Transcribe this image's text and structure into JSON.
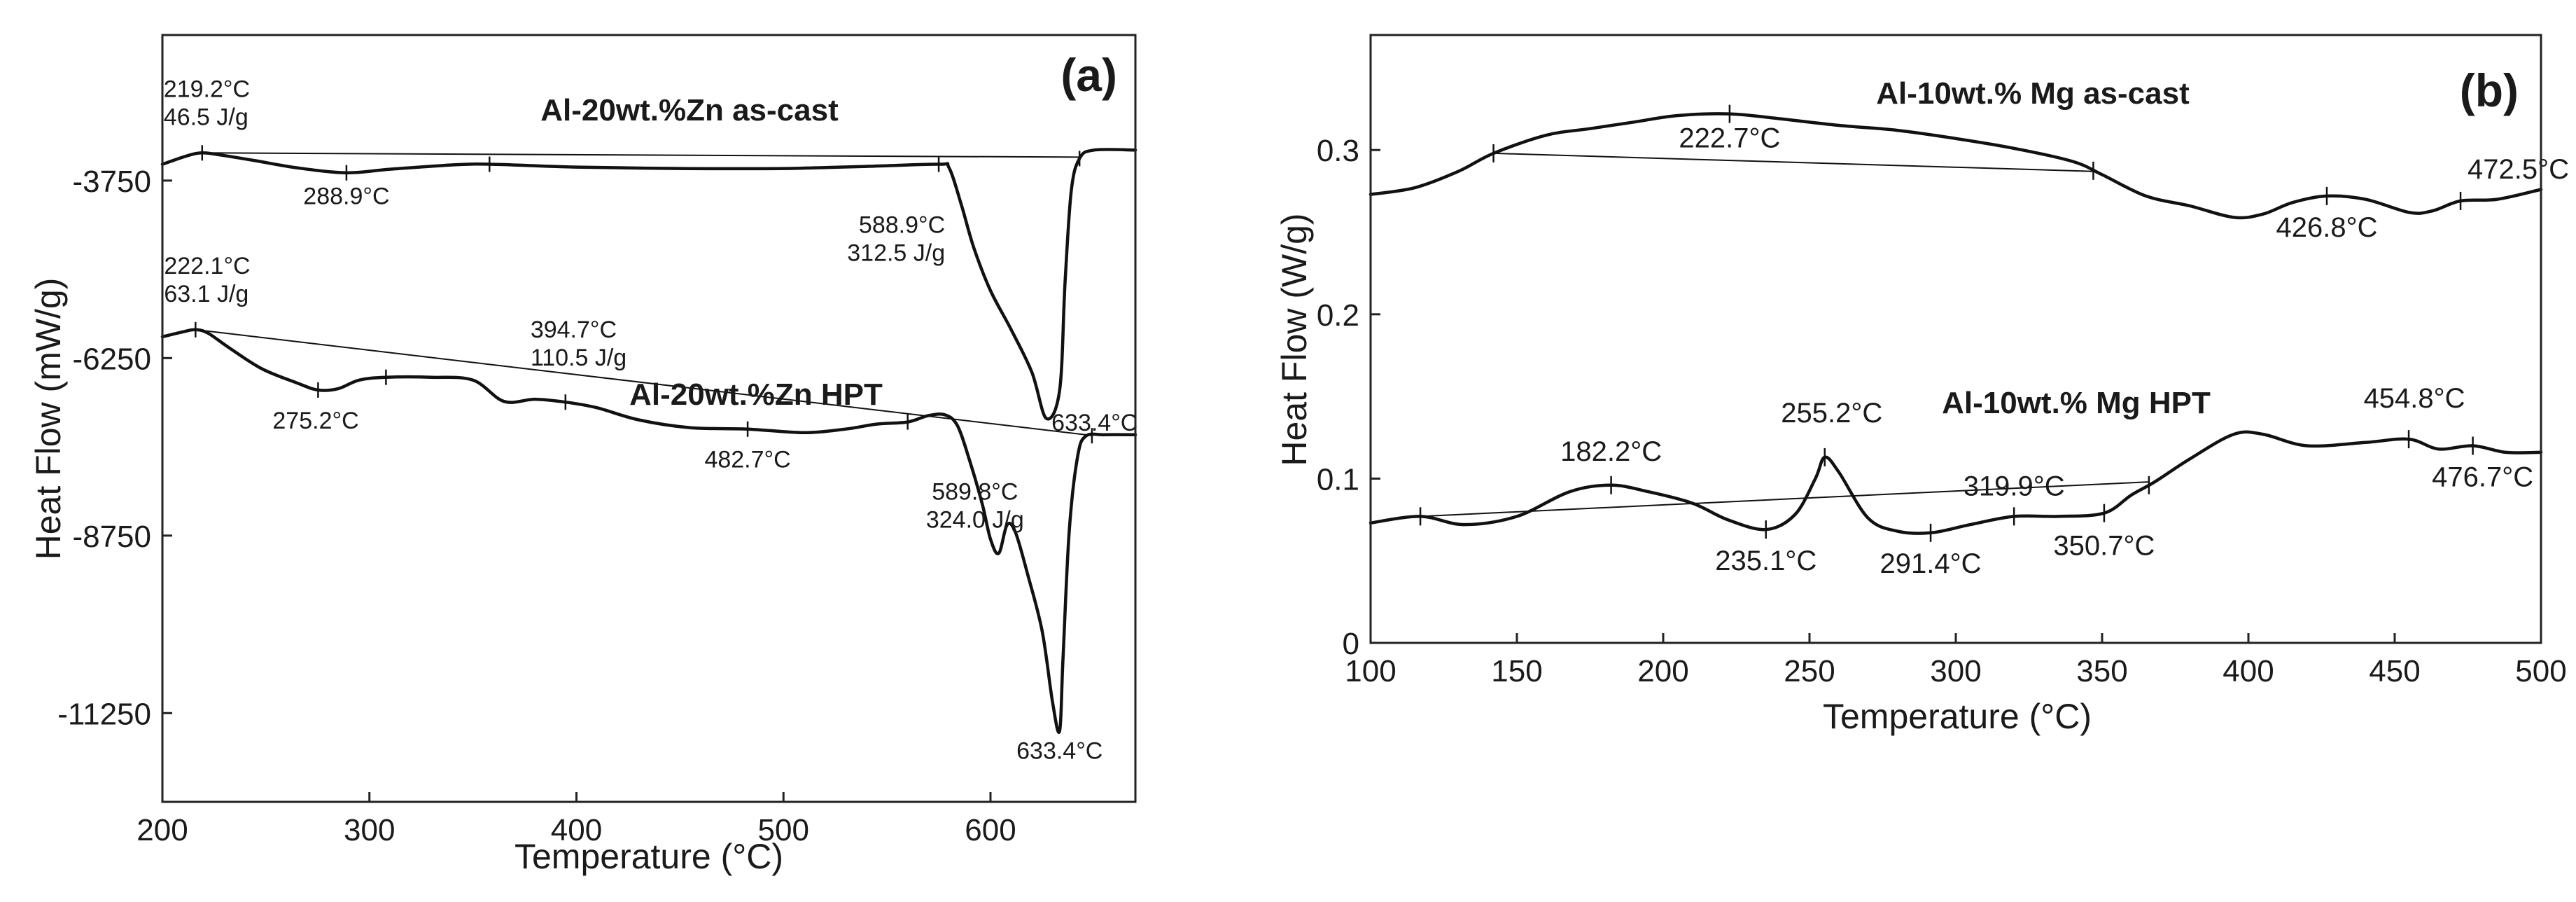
{
  "chart_data": [
    {
      "type": "line",
      "panel_label": "(a)",
      "xlabel": "Temperature (°C)",
      "ylabel": "Heat Flow (mW/g)",
      "xlim": [
        200,
        670
      ],
      "ylim": [
        -12500,
        -1700
      ],
      "x_ticks": [
        200,
        300,
        400,
        500,
        600
      ],
      "x_tick_labels": [
        "200",
        "300",
        "400",
        "500",
        "600"
      ],
      "y_ticks": [
        -3750,
        -6250,
        -8750,
        -11250
      ],
      "y_tick_labels": [
        "-3750",
        "-6250",
        "-8750",
        "-11250"
      ],
      "series": [
        {
          "name": "Al-20wt.%Zn  as-cast",
          "label": "Al-20wt.%Zn  as-cast",
          "points": [
            [
              200,
              -3520
            ],
            [
              212,
              -3400
            ],
            [
              219.2,
              -3360
            ],
            [
              228,
              -3390
            ],
            [
              245,
              -3470
            ],
            [
              265,
              -3570
            ],
            [
              288.9,
              -3640
            ],
            [
              310,
              -3590
            ],
            [
              340,
              -3530
            ],
            [
              358,
              -3520
            ],
            [
              400,
              -3560
            ],
            [
              450,
              -3580
            ],
            [
              500,
              -3580
            ],
            [
              540,
              -3550
            ],
            [
              575,
              -3520
            ],
            [
              580,
              -3570
            ],
            [
              586,
              -4100
            ],
            [
              592,
              -4700
            ],
            [
              600,
              -5300
            ],
            [
              610,
              -5850
            ],
            [
              620,
              -6450
            ],
            [
              627,
              -7100
            ],
            [
              633.4,
              -6700
            ],
            [
              636,
              -5200
            ],
            [
              639,
              -3900
            ],
            [
              643,
              -3440
            ],
            [
              650,
              -3320
            ],
            [
              670,
              -3320
            ]
          ],
          "baseline": [
            [
              219.2,
              -3360
            ],
            [
              643,
              -3420
            ]
          ],
          "markers": [
            219.2,
            288.9,
            358,
            575,
            643
          ],
          "annotations": [
            {
              "id": "peak-219",
              "x": 219.2,
              "lines": [
                "219.2°C",
                "46.5 J/g"
              ]
            },
            {
              "id": "peak-288",
              "x": 288.9,
              "lines": [
                "288.9°C"
              ]
            },
            {
              "id": "peak-588",
              "x": 588.9,
              "lines": [
                "588.9°C",
                "312.5 J/g"
              ]
            },
            {
              "id": "peak-633",
              "x": 633.4,
              "lines": [
                "633.4°C"
              ]
            }
          ]
        },
        {
          "name": "Al-20wt.%Zn  HPT",
          "label": "Al-20wt.%Zn  HPT",
          "points": [
            [
              200,
              -5950
            ],
            [
              210,
              -5880
            ],
            [
              216,
              -5850
            ],
            [
              222.1,
              -5900
            ],
            [
              232,
              -6100
            ],
            [
              248,
              -6400
            ],
            [
              265,
              -6600
            ],
            [
              275.2,
              -6700
            ],
            [
              285,
              -6680
            ],
            [
              295,
              -6560
            ],
            [
              308,
              -6520
            ],
            [
              330,
              -6520
            ],
            [
              350,
              -6560
            ],
            [
              365,
              -6860
            ],
            [
              380,
              -6830
            ],
            [
              394.7,
              -6870
            ],
            [
              410,
              -6950
            ],
            [
              430,
              -7120
            ],
            [
              455,
              -7230
            ],
            [
              482.7,
              -7250
            ],
            [
              510,
              -7300
            ],
            [
              530,
              -7250
            ],
            [
              545,
              -7180
            ],
            [
              560,
              -7150
            ],
            [
              570,
              -7060
            ],
            [
              578,
              -7050
            ],
            [
              584,
              -7200
            ],
            [
              590,
              -7700
            ],
            [
              596,
              -8300
            ],
            [
              600,
              -8800
            ],
            [
              604,
              -9000
            ],
            [
              608,
              -8600
            ],
            [
              612,
              -8700
            ],
            [
              618,
              -9300
            ],
            [
              625,
              -10100
            ],
            [
              630,
              -11100
            ],
            [
              633.4,
              -11500
            ],
            [
              635,
              -10500
            ],
            [
              638,
              -8700
            ],
            [
              642,
              -7650
            ],
            [
              646,
              -7350
            ],
            [
              655,
              -7330
            ],
            [
              670,
              -7330
            ]
          ],
          "baseline": [
            [
              216,
              -5850
            ],
            [
              649,
              -7340
            ]
          ],
          "markers": [
            216,
            275.2,
            308,
            394.7,
            482.7,
            560,
            649
          ],
          "annotations": [
            {
              "id": "peak-222",
              "x": 222.1,
              "lines": [
                "222.1°C",
                "63.1 J/g"
              ]
            },
            {
              "id": "peak-275",
              "x": 275.2,
              "lines": [
                "275.2°C"
              ]
            },
            {
              "id": "peak-394",
              "x": 394.7,
              "lines": [
                "394.7°C",
                "110.5 J/g"
              ]
            },
            {
              "id": "peak-482",
              "x": 482.7,
              "lines": [
                "482.7°C"
              ]
            },
            {
              "id": "peak-589",
              "x": 589.8,
              "lines": [
                "589.8°C",
                "324.0 J/g"
              ]
            },
            {
              "id": "peak-633b",
              "x": 633.4,
              "lines": [
                "633.4°C"
              ]
            }
          ]
        }
      ]
    },
    {
      "type": "line",
      "panel_label": "(b)",
      "xlabel": "Temperature (°C)",
      "ylabel": "Heat Flow (W/g)",
      "xlim": [
        100,
        500
      ],
      "ylim": [
        0,
        0.37
      ],
      "x_ticks": [
        100,
        150,
        200,
        250,
        300,
        350,
        400,
        450,
        500
      ],
      "x_tick_labels": [
        "100",
        "150",
        "200",
        "250",
        "300",
        "350",
        "400",
        "450",
        "500"
      ],
      "y_ticks": [
        0,
        0.1,
        0.2,
        0.3
      ],
      "y_tick_labels": [
        "0",
        "0.1",
        "0.2",
        "0.3"
      ],
      "series": [
        {
          "name": "Al-10wt.% Mg  as-cast",
          "label": "Al-10wt.% Mg  as-cast",
          "points": [
            [
              100,
              0.273
            ],
            [
              115,
              0.277
            ],
            [
              130,
              0.287
            ],
            [
              142,
              0.298
            ],
            [
              160,
              0.309
            ],
            [
              175,
              0.313
            ],
            [
              190,
              0.317
            ],
            [
              205,
              0.321
            ],
            [
              222.7,
              0.322
            ],
            [
              240,
              0.319
            ],
            [
              260,
              0.315
            ],
            [
              280,
              0.312
            ],
            [
              300,
              0.307
            ],
            [
              320,
              0.301
            ],
            [
              340,
              0.293
            ],
            [
              350,
              0.285
            ],
            [
              365,
              0.272
            ],
            [
              380,
              0.266
            ],
            [
              395,
              0.259
            ],
            [
              405,
              0.261
            ],
            [
              415,
              0.268
            ],
            [
              426.8,
              0.272
            ],
            [
              440,
              0.27
            ],
            [
              455,
              0.262
            ],
            [
              463,
              0.263
            ],
            [
              472.5,
              0.269
            ],
            [
              485,
              0.27
            ],
            [
              500,
              0.276
            ]
          ],
          "baseline": [
            [
              142,
              0.298
            ],
            [
              347,
              0.287
            ]
          ],
          "markers": [
            142,
            222.7,
            347,
            426.8,
            472.5
          ],
          "annotations": [
            {
              "id": "peak-222-7",
              "x": 222.7,
              "lines": [
                "222.7°C"
              ]
            },
            {
              "id": "peak-426",
              "x": 426.8,
              "lines": [
                "426.8°C"
              ]
            },
            {
              "id": "peak-472",
              "x": 472.5,
              "lines": [
                "472.5°C"
              ]
            }
          ]
        },
        {
          "name": "Al-10wt.% Mg  HPT",
          "label": "Al-10wt.% Mg  HPT",
          "points": [
            [
              100,
              0.073
            ],
            [
              117,
              0.077
            ],
            [
              132,
              0.072
            ],
            [
              150,
              0.077
            ],
            [
              168,
              0.092
            ],
            [
              182.2,
              0.096
            ],
            [
              195,
              0.092
            ],
            [
              210,
              0.085
            ],
            [
              222,
              0.075
            ],
            [
              235.1,
              0.069
            ],
            [
              245,
              0.078
            ],
            [
              252,
              0.1
            ],
            [
              255.2,
              0.113
            ],
            [
              260,
              0.104
            ],
            [
              270,
              0.076
            ],
            [
              280,
              0.068
            ],
            [
              291.4,
              0.067
            ],
            [
              305,
              0.072
            ],
            [
              319.9,
              0.077
            ],
            [
              335,
              0.077
            ],
            [
              350.7,
              0.079
            ],
            [
              360,
              0.09
            ],
            [
              368,
              0.098
            ],
            [
              380,
              0.112
            ],
            [
              395,
              0.127
            ],
            [
              405,
              0.127
            ],
            [
              420,
              0.12
            ],
            [
              440,
              0.122
            ],
            [
              454.8,
              0.124
            ],
            [
              465,
              0.118
            ],
            [
              476.7,
              0.12
            ],
            [
              488,
              0.116
            ],
            [
              500,
              0.116
            ]
          ],
          "baseline": [
            [
              117,
              0.077
            ],
            [
              366,
              0.098
            ]
          ],
          "markers": [
            117,
            182.2,
            235.1,
            255.2,
            291.4,
            319.9,
            350.7,
            366,
            454.8,
            476.7
          ],
          "annotations": [
            {
              "id": "peak-182",
              "x": 182.2,
              "lines": [
                "182.2°C"
              ]
            },
            {
              "id": "peak-235",
              "x": 235.1,
              "lines": [
                "235.1°C"
              ]
            },
            {
              "id": "peak-255",
              "x": 255.2,
              "lines": [
                "255.2°C"
              ]
            },
            {
              "id": "peak-291",
              "x": 291.4,
              "lines": [
                "291.4°C"
              ]
            },
            {
              "id": "peak-319",
              "x": 319.9,
              "lines": [
                "319.9°C"
              ]
            },
            {
              "id": "peak-350",
              "x": 350.7,
              "lines": [
                "350.7°C"
              ]
            },
            {
              "id": "peak-454",
              "x": 454.8,
              "lines": [
                "454.8°C"
              ]
            },
            {
              "id": "peak-476",
              "x": 476.7,
              "lines": [
                "476.7°C"
              ]
            }
          ]
        }
      ]
    }
  ]
}
